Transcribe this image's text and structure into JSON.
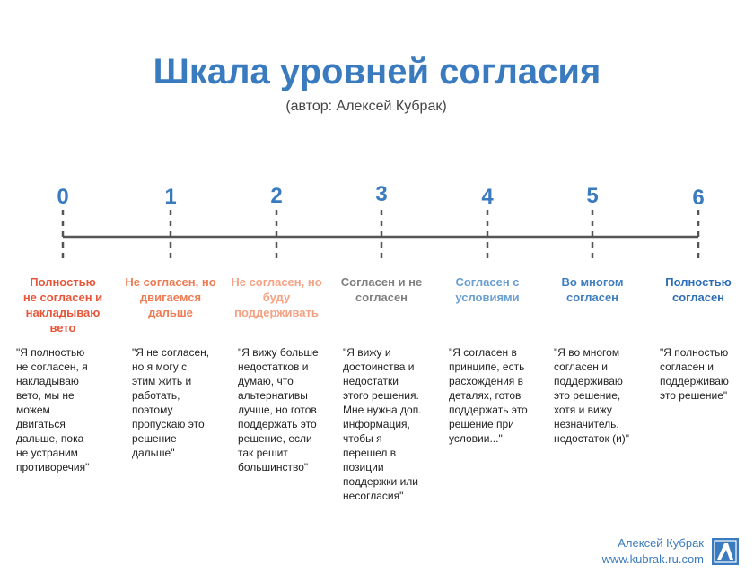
{
  "header": {
    "title": "Шкала уровней согласия",
    "subtitle": "(автор: Алексей Кубрак)"
  },
  "levels": [
    {
      "number": "0",
      "color": "#e8563a",
      "label": [
        "Полностью",
        "не согласен и",
        "накладываю",
        "вето"
      ],
      "quote": [
        "\"Я полностью",
        "не согласен, я",
        "накладываю",
        "вето, мы не",
        "можем",
        "двигаться",
        "дальше, пока",
        "не устраним",
        "противоречия\""
      ]
    },
    {
      "number": "1",
      "color": "#ee7b52",
      "label": [
        "Не согласен, но",
        "двигаемся",
        "дальше"
      ],
      "quote": [
        "\"Я не согласен,",
        "но я могу с",
        "этим жить и",
        "работать,",
        "поэтому",
        "пропускаю это",
        "решение",
        "дальше\""
      ]
    },
    {
      "number": "2",
      "color": "#f4a283",
      "label": [
        "Не согласен, но",
        "буду",
        "поддерживать"
      ],
      "quote": [
        "\"Я вижу больше",
        "недостатков и",
        "думаю, что",
        "альтернативы",
        "лучше, но готов",
        "поддержать это",
        "решение, если",
        "так решит",
        "большинство\""
      ]
    },
    {
      "number": "3",
      "color": "#7f7f7f",
      "label": [
        "Согласен и не",
        "согласен"
      ],
      "quote": [
        "\"Я вижу и",
        "достоинства и",
        "недостатки",
        "этого решения.",
        "Мне нужна доп.",
        "информация,",
        "чтобы я",
        "перешел в",
        "позиции",
        "поддержки или",
        "несогласия\""
      ]
    },
    {
      "number": "4",
      "color": "#6a9fd1",
      "label": [
        "Согласен с",
        "условиями"
      ],
      "quote": [
        "\"Я согласен в",
        "принципе, есть",
        "расхождения в",
        "деталях, готов",
        "поддержать это",
        "решение при",
        "условии...\""
      ]
    },
    {
      "number": "5",
      "color": "#3f7fbf",
      "label": [
        "Во многом",
        "согласен"
      ],
      "quote": [
        "\"Я во многом",
        "согласен и",
        "поддерживаю",
        "это решение,",
        "хотя и вижу",
        "незначитель.",
        "недостаток (и)\""
      ]
    },
    {
      "number": "6",
      "color": "#2d6db6",
      "label": [
        "Полностью",
        "согласен"
      ],
      "quote": [
        "\"Я полностью",
        "согласен и",
        "поддерживаю",
        "это решение\""
      ]
    }
  ],
  "footer": {
    "author": "Алексей Кубрак",
    "site": "www.kubrak.ru.com"
  }
}
